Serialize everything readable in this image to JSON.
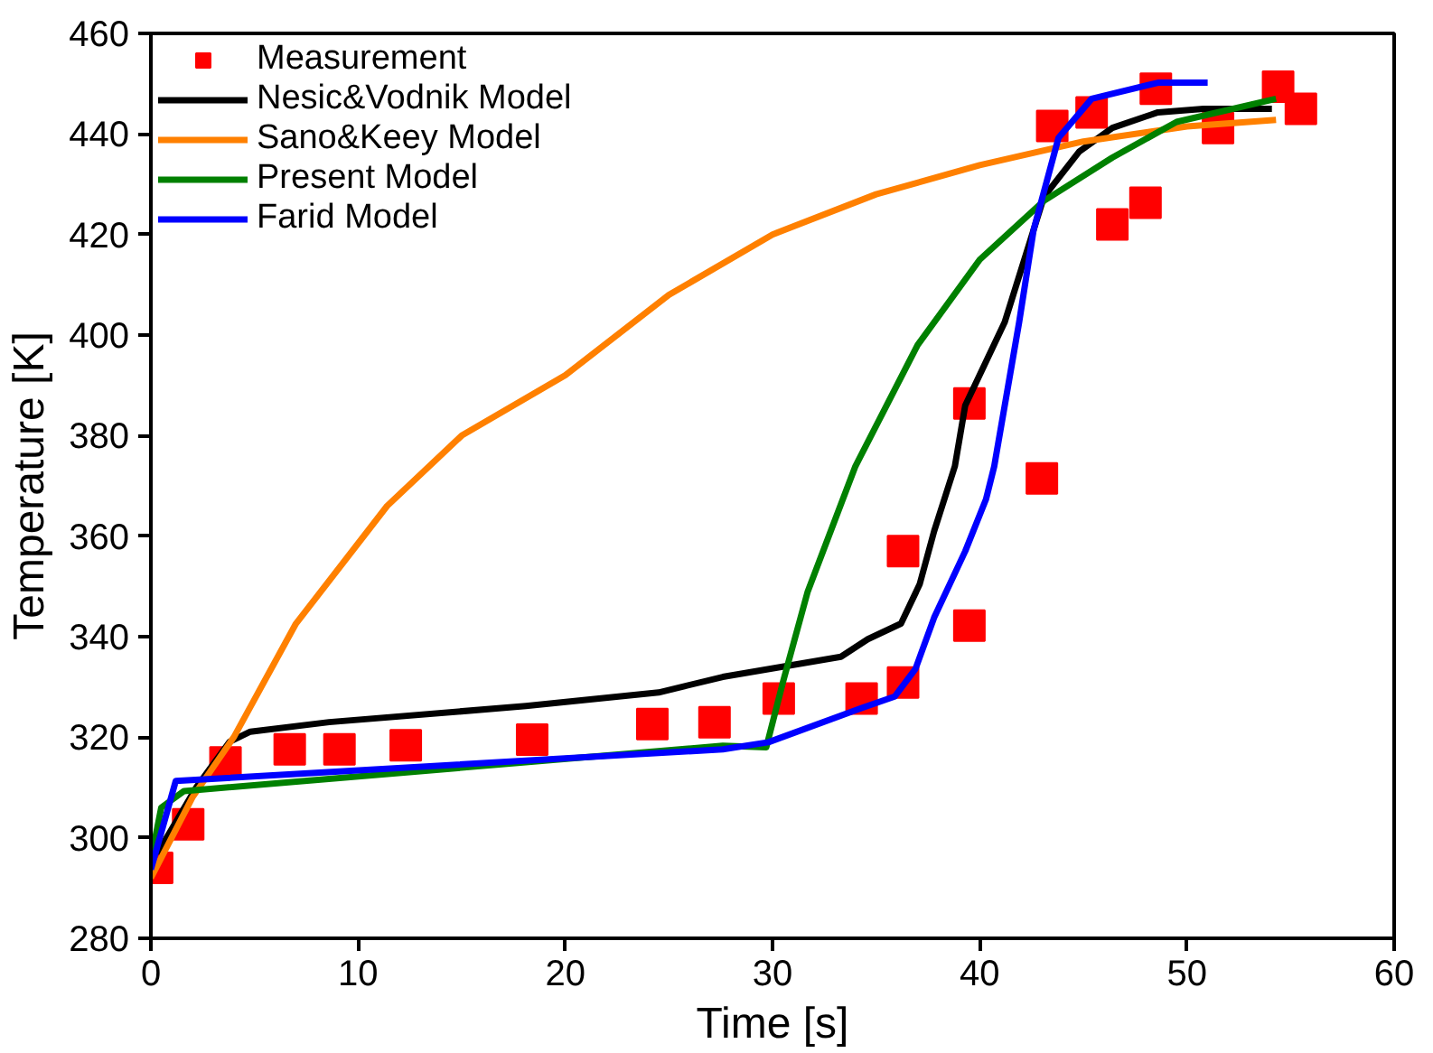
{
  "chart_data": {
    "type": "line",
    "xlabel": "Time [s]",
    "ylabel": "Temperature [K]",
    "xlim": [
      0,
      60
    ],
    "ylim": [
      280,
      460
    ],
    "xticks": [
      0,
      10,
      20,
      30,
      40,
      50,
      60
    ],
    "yticks": [
      280,
      300,
      320,
      340,
      360,
      380,
      400,
      420,
      440,
      460
    ],
    "grid": false,
    "legend": "top left",
    "series": [
      {
        "name": "Measurement",
        "type": "scatter",
        "marker": "square",
        "color": "#ff0000",
        "x": [
          0.3,
          1.8,
          3.6,
          6.7,
          9.1,
          12.3,
          18.4,
          24.2,
          27.2,
          30.3,
          34.3,
          36.3,
          36.3,
          39.5,
          39.5,
          43.0,
          43.5,
          45.4,
          46.4,
          48.0,
          48.5,
          51.5,
          54.4,
          55.5
        ],
        "values": [
          294,
          302.7,
          315,
          317.6,
          317.6,
          318.4,
          319.5,
          322.6,
          323,
          327.7,
          327.7,
          330.9,
          357,
          342.2,
          386.4,
          371.5,
          441.6,
          444.3,
          422,
          426.3,
          449,
          441.2,
          449.4,
          445
        ]
      },
      {
        "name": "Nesic&Vodnik Model",
        "color": "#000000",
        "x": [
          0.3,
          2.2,
          3.8,
          4.8,
          8.6,
          18.1,
          24.5,
          27.6,
          33.3,
          34.6,
          36.2,
          37.1,
          37.8,
          38.8,
          39.3,
          41.2,
          43.1,
          44.8,
          46.4,
          48.6,
          50.8,
          54.1
        ],
        "values": [
          296.8,
          310.1,
          319.1,
          321.1,
          323,
          326.2,
          328.9,
          332,
          336,
          339.5,
          342.6,
          350.4,
          361,
          373.9,
          386,
          402.5,
          427.5,
          436.5,
          441.2,
          444.3,
          445,
          445
        ]
      },
      {
        "name": "Sano&Keey Model",
        "color": "#ff8000",
        "x": [
          0,
          2,
          4,
          7,
          11.4,
          15,
          20,
          25,
          30,
          35,
          40,
          45,
          50,
          54.3
        ],
        "values": [
          292,
          308,
          320,
          342.6,
          366,
          380,
          392,
          408,
          420,
          428,
          433.8,
          438.5,
          441.5,
          442.8
        ]
      },
      {
        "name": "Present Model",
        "color": "#008000",
        "x": [
          0,
          0.5,
          1.6,
          27.6,
          29.7,
          30.5,
          31.7,
          34,
          37,
          40,
          43.1,
          46.4,
          49.5,
          54.3
        ],
        "values": [
          295.6,
          306,
          309.3,
          318.3,
          318,
          330.9,
          349,
          373.9,
          398,
          415,
          426.7,
          435.3,
          442.4,
          447
        ]
      },
      {
        "name": "Farid Model",
        "color": "#0000ff",
        "x": [
          0,
          1.2,
          27.6,
          29.8,
          34.3,
          35.9,
          36.9,
          37.8,
          39.3,
          40.3,
          40.7,
          41.9,
          42.6,
          43.8,
          45.4,
          48.6,
          51
        ],
        "values": [
          293.7,
          311.3,
          317.6,
          319,
          325.8,
          328.1,
          333.6,
          343.8,
          357,
          367.3,
          373.9,
          402.5,
          420.9,
          439.2,
          447,
          450.2,
          450.2
        ]
      }
    ]
  }
}
